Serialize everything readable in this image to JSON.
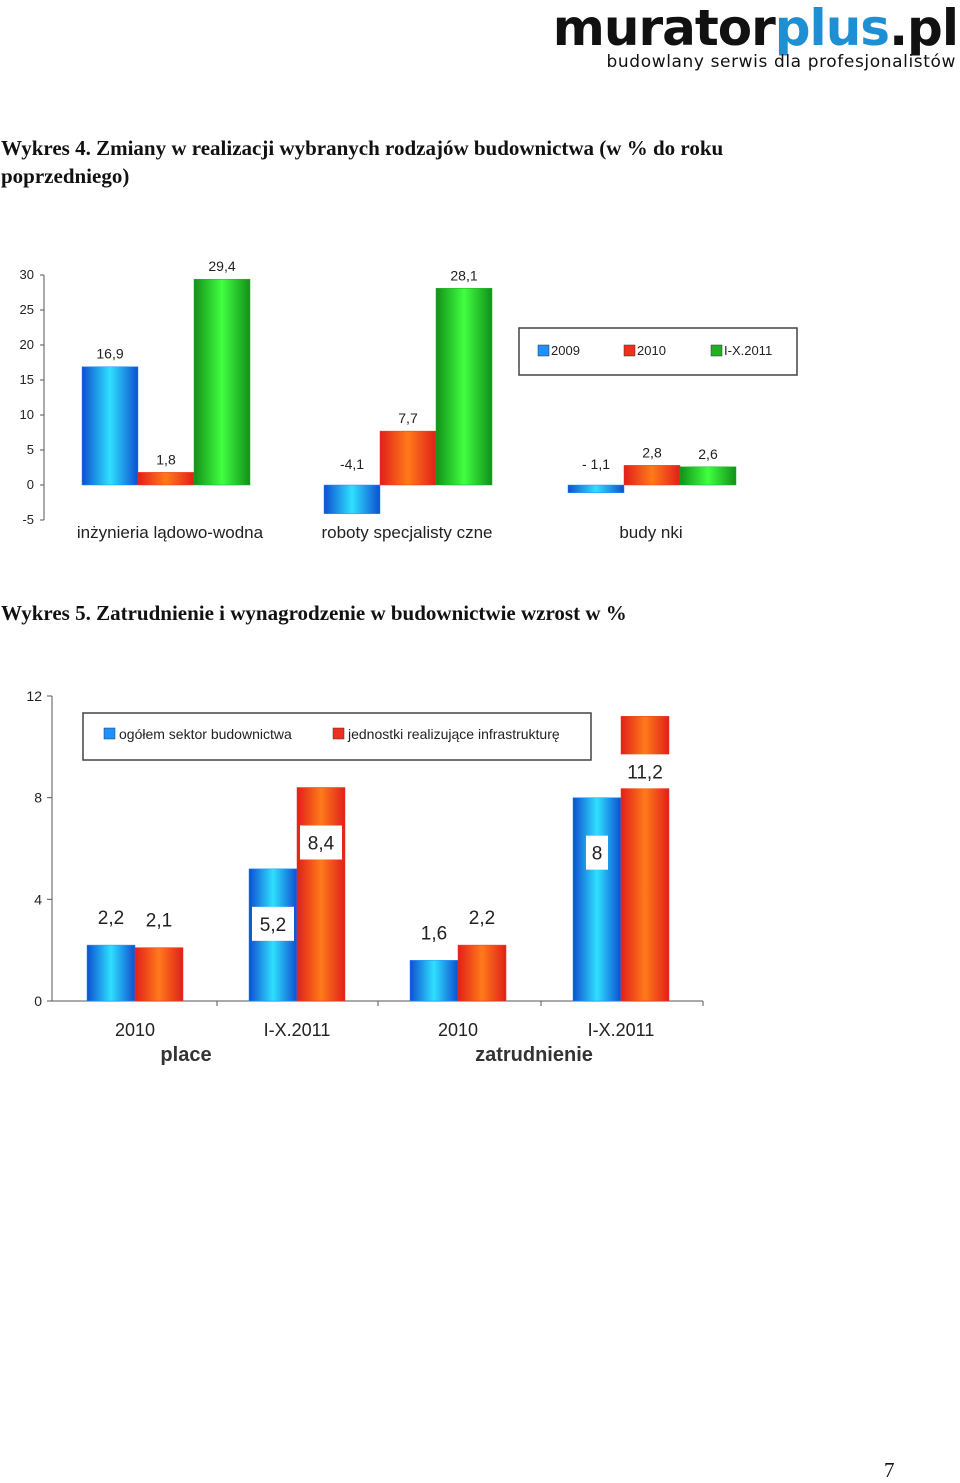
{
  "logo": {
    "part1": "murator",
    "part2": "plus",
    "part3": ".pl",
    "tagline": "budowlany serwis dla profesjonalistów"
  },
  "heading4": "Wykres 4. Zmiany w realizacji wybranych rodzajów budownictwa (w % do roku poprzedniego)",
  "heading5": "Wykres 5. Zatrudnienie i wynagrodzenie w budownictwie wzrost w %",
  "page_number": "7",
  "chart_data": [
    {
      "type": "bar",
      "categories": [
        "inżynieria lądowo-wodna",
        "roboty  specjalisty czne",
        "budy nki"
      ],
      "series": [
        {
          "name": "2009",
          "values": [
            16.9,
            -4.1,
            -1.1
          ],
          "labels": [
            "16,9",
            "-4,1",
            "- 1,1"
          ],
          "color": "#1e90ff"
        },
        {
          "name": "2010",
          "values": [
            1.8,
            7.7,
            2.8
          ],
          "labels": [
            "1,8",
            "7,7",
            "2,8"
          ],
          "color": "#f0301e"
        },
        {
          "name": "I-X.2011",
          "values": [
            29.4,
            28.1,
            2.6
          ],
          "labels": [
            "29,4",
            "28,1",
            "2,6"
          ],
          "color": "#22b022"
        }
      ],
      "yticks": [
        "30",
        "25",
        "20",
        "15",
        "10",
        "5",
        "0",
        "-5"
      ],
      "ylim": [
        -5,
        30
      ],
      "legend": "top-right"
    },
    {
      "type": "bar",
      "categories": [
        "2010",
        "I-X.2011",
        "2010",
        "I-X.2011"
      ],
      "groups": [
        "place",
        "zatrudnienie"
      ],
      "series": [
        {
          "name": "ogółem sektor budownictwa",
          "values": [
            2.2,
            5.2,
            1.6,
            8
          ],
          "labels": [
            "2,2",
            "5,2",
            "1,6",
            "8"
          ],
          "color": "#1e90ff"
        },
        {
          "name": "jednostki realizujące infrastrukturę",
          "values": [
            2.1,
            8.4,
            2.2,
            11.2
          ],
          "labels": [
            "2,1",
            "8,4",
            "2,2",
            "11,2"
          ],
          "color": "#f0301e"
        }
      ],
      "yticks": [
        "12",
        "8",
        "4",
        "0"
      ],
      "ylim": [
        0,
        12
      ],
      "legend": "top"
    }
  ]
}
